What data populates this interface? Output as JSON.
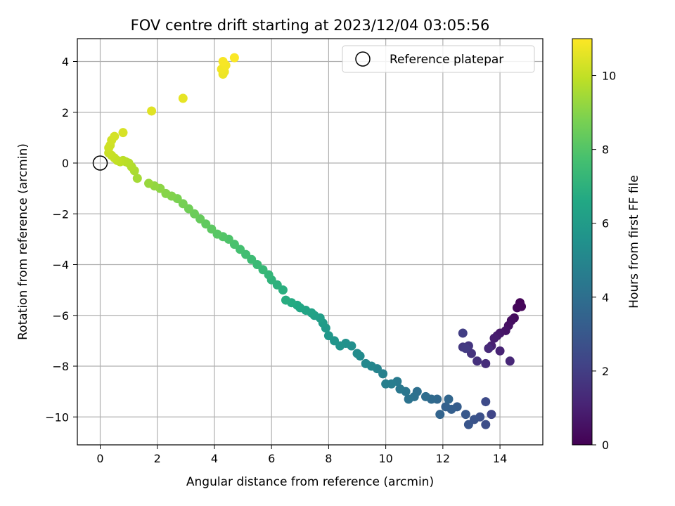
{
  "chart_data": {
    "type": "scatter",
    "title": "FOV centre drift starting at 2023/12/04 03:05:56",
    "xlabel": "Angular distance from reference (arcmin)",
    "ylabel": "Rotation from reference (arcmin)",
    "xlim": [
      -0.8,
      15.5
    ],
    "ylim": [
      -11.1,
      4.9
    ],
    "xticks": [
      0,
      2,
      4,
      6,
      8,
      10,
      12,
      14
    ],
    "yticks": [
      4,
      2,
      0,
      -2,
      -4,
      -6,
      -8,
      -10
    ],
    "grid": true,
    "legend": {
      "placement": "top-right",
      "entries": [
        "Reference platepar"
      ]
    },
    "reference_point": {
      "x": 0,
      "y": 0,
      "label": "Reference platepar"
    },
    "colorbar": {
      "label": "Hours from first FF file",
      "colormap": "viridis",
      "range": [
        0,
        11
      ],
      "ticks": [
        0,
        2,
        4,
        6,
        8,
        10
      ]
    },
    "series": [
      {
        "points": [
          [
            14.7,
            -5.5,
            0.1
          ],
          [
            14.75,
            -5.65,
            0.15
          ],
          [
            14.6,
            -5.7,
            0.2
          ],
          [
            14.5,
            -6.1,
            0.3
          ],
          [
            14.4,
            -6.2,
            0.4
          ],
          [
            14.3,
            -6.4,
            0.5
          ],
          [
            14.2,
            -6.6,
            0.6
          ],
          [
            14.0,
            -6.7,
            0.7
          ],
          [
            13.9,
            -6.8,
            0.8
          ],
          [
            13.8,
            -6.9,
            0.9
          ],
          [
            13.7,
            -7.2,
            1.0
          ],
          [
            14.0,
            -7.4,
            1.1
          ],
          [
            14.35,
            -7.8,
            1.2
          ],
          [
            13.6,
            -7.3,
            1.3
          ],
          [
            13.5,
            -7.9,
            1.4
          ],
          [
            13.2,
            -7.8,
            1.5
          ],
          [
            13.0,
            -7.5,
            1.6
          ],
          [
            12.9,
            -7.2,
            1.7
          ],
          [
            12.7,
            -7.25,
            1.8
          ],
          [
            12.8,
            -7.3,
            1.9
          ],
          [
            12.7,
            -6.7,
            2.0
          ],
          [
            13.7,
            -9.9,
            2.3
          ],
          [
            13.5,
            -9.4,
            2.5
          ],
          [
            13.5,
            -10.3,
            2.6
          ],
          [
            13.3,
            -10.0,
            2.7
          ],
          [
            13.1,
            -10.1,
            2.8
          ],
          [
            12.9,
            -10.3,
            2.9
          ],
          [
            12.8,
            -9.9,
            3.0
          ],
          [
            12.5,
            -9.6,
            3.2
          ],
          [
            12.3,
            -9.7,
            3.3
          ],
          [
            12.1,
            -9.6,
            3.4
          ],
          [
            11.9,
            -9.9,
            3.5
          ],
          [
            12.2,
            -9.3,
            3.6
          ],
          [
            11.8,
            -9.3,
            3.7
          ],
          [
            11.6,
            -9.3,
            3.8
          ],
          [
            11.4,
            -9.2,
            3.9
          ],
          [
            11.1,
            -9.0,
            4.0
          ],
          [
            11.0,
            -9.2,
            4.1
          ],
          [
            10.8,
            -9.3,
            4.2
          ],
          [
            10.7,
            -9.0,
            4.3
          ],
          [
            10.5,
            -8.9,
            4.4
          ],
          [
            10.4,
            -8.6,
            4.5
          ],
          [
            10.2,
            -8.7,
            4.6
          ],
          [
            10.0,
            -8.7,
            4.7
          ],
          [
            9.9,
            -8.3,
            4.8
          ],
          [
            9.7,
            -8.1,
            4.9
          ],
          [
            9.5,
            -8.0,
            5.0
          ],
          [
            9.3,
            -7.9,
            5.1
          ],
          [
            9.1,
            -7.6,
            5.2
          ],
          [
            9.0,
            -7.5,
            5.3
          ],
          [
            8.8,
            -7.2,
            5.4
          ],
          [
            8.6,
            -7.1,
            5.5
          ],
          [
            8.4,
            -7.2,
            5.6
          ],
          [
            8.2,
            -7.0,
            5.7
          ],
          [
            8.0,
            -6.8,
            5.8
          ],
          [
            7.9,
            -6.5,
            5.9
          ],
          [
            7.8,
            -6.3,
            6.0
          ],
          [
            7.7,
            -6.1,
            6.1
          ],
          [
            7.5,
            -6.0,
            6.2
          ],
          [
            7.4,
            -5.9,
            6.3
          ],
          [
            7.2,
            -5.8,
            6.4
          ],
          [
            7.0,
            -5.7,
            6.5
          ],
          [
            6.9,
            -5.6,
            6.6
          ],
          [
            6.7,
            -5.5,
            6.7
          ],
          [
            6.5,
            -5.4,
            6.8
          ],
          [
            6.4,
            -5.0,
            6.9
          ],
          [
            6.2,
            -4.8,
            7.0
          ],
          [
            6.0,
            -4.6,
            7.1
          ],
          [
            5.9,
            -4.4,
            7.2
          ],
          [
            5.7,
            -4.2,
            7.3
          ],
          [
            5.5,
            -4.0,
            7.4
          ],
          [
            5.3,
            -3.8,
            7.5
          ],
          [
            5.1,
            -3.6,
            7.6
          ],
          [
            4.9,
            -3.4,
            7.7
          ],
          [
            4.7,
            -3.2,
            7.8
          ],
          [
            4.5,
            -3.0,
            7.9
          ],
          [
            4.3,
            -2.9,
            8.0
          ],
          [
            4.1,
            -2.8,
            8.1
          ],
          [
            3.9,
            -2.6,
            8.2
          ],
          [
            3.7,
            -2.4,
            8.3
          ],
          [
            3.5,
            -2.2,
            8.4
          ],
          [
            3.3,
            -2.0,
            8.5
          ],
          [
            3.1,
            -1.8,
            8.6
          ],
          [
            2.9,
            -1.6,
            8.7
          ],
          [
            2.7,
            -1.4,
            8.8
          ],
          [
            2.5,
            -1.3,
            8.9
          ],
          [
            2.3,
            -1.2,
            9.0
          ],
          [
            2.1,
            -1.0,
            9.1
          ],
          [
            1.9,
            -0.9,
            9.2
          ],
          [
            1.7,
            -0.8,
            9.3
          ],
          [
            1.3,
            -0.6,
            9.5
          ],
          [
            1.2,
            -0.3,
            9.6
          ],
          [
            1.1,
            -0.15,
            9.7
          ],
          [
            1.0,
            0.0,
            9.75
          ],
          [
            0.9,
            0.05,
            9.8
          ],
          [
            0.8,
            0.1,
            9.85
          ],
          [
            0.7,
            0.05,
            9.9
          ],
          [
            0.6,
            0.1,
            9.95
          ],
          [
            0.5,
            0.2,
            10.0
          ],
          [
            0.4,
            0.3,
            10.05
          ],
          [
            0.3,
            0.4,
            10.1
          ],
          [
            0.3,
            0.6,
            10.15
          ],
          [
            0.35,
            0.7,
            10.2
          ],
          [
            0.4,
            0.9,
            10.25
          ],
          [
            0.5,
            1.05,
            10.3
          ],
          [
            0.8,
            1.2,
            10.35
          ],
          [
            1.8,
            2.05,
            10.5
          ],
          [
            2.9,
            2.55,
            10.6
          ],
          [
            4.3,
            3.5,
            10.7
          ],
          [
            4.35,
            3.6,
            10.75
          ],
          [
            4.25,
            3.7,
            10.8
          ],
          [
            4.4,
            3.85,
            10.85
          ],
          [
            4.3,
            4.0,
            10.9
          ],
          [
            4.7,
            4.15,
            10.95
          ]
        ]
      }
    ]
  }
}
